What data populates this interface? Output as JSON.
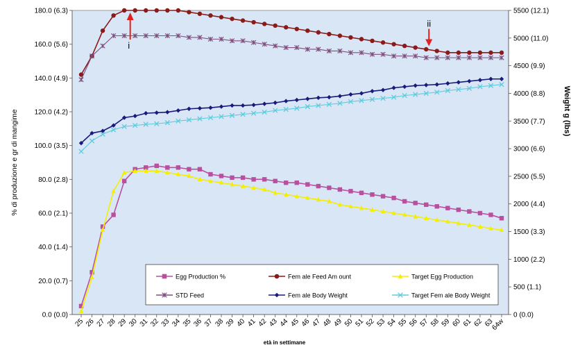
{
  "chart_data": {
    "type": "line",
    "title": "",
    "xlabel": "età in settimane",
    "ylabel_left": "% di produzione e gr di mangime",
    "ylabel_right": "Weight g (lbs)",
    "categories": [
      "25",
      "26",
      "27",
      "28",
      "29",
      "30",
      "31",
      "32",
      "33",
      "34",
      "35",
      "36",
      "37",
      "38",
      "39",
      "40",
      "41",
      "42",
      "43",
      "44",
      "45",
      "46",
      "47",
      "48",
      "49",
      "50",
      "51",
      "52",
      "53",
      "54",
      "55",
      "56",
      "57",
      "58",
      "59",
      "60",
      "61",
      "62",
      "63",
      "64w"
    ],
    "ylim_left": [
      0,
      180
    ],
    "ylim_right": [
      0,
      5500
    ],
    "yticks_left": [
      "0.0 (0.0)",
      "20.0 (0.7)",
      "40.0 (1.4)",
      "60.0 (2.1)",
      "80.0 (2.8)",
      "100.0 (3.5)",
      "120.0 (4.2)",
      "140.0 (4.9)",
      "160.0 (5.6)",
      "180.0 (6.3)"
    ],
    "yticks_right": [
      "0 (0.0)",
      "500 (1.1)",
      "1000 (2.2)",
      "1500 (3.3)",
      "2000 (4.4)",
      "2500 (5.5)",
      "3000 (6.6)",
      "3500 (7.7)",
      "4000 (8.8)",
      "4500 (9.9)",
      "5000 (11.0)",
      "5500 (12.1)"
    ],
    "grid": false,
    "background_color": "#d9e6f5",
    "legend_position": "bottom-center",
    "series": [
      {
        "name": "Egg Production %",
        "axis": "left",
        "color": "#b8509f",
        "marker": "square",
        "values": [
          5,
          25,
          52,
          59,
          79,
          86,
          87,
          88,
          87,
          87,
          86,
          86,
          83,
          82,
          81,
          81,
          80,
          80,
          79,
          78,
          78,
          77,
          76,
          75,
          74,
          73,
          72,
          71,
          70,
          69,
          67,
          66,
          65,
          64,
          63,
          62,
          61,
          60,
          59,
          57
        ]
      },
      {
        "name": "Female Feed Amount",
        "axis": "left",
        "color": "#8b1a1a",
        "marker": "circle",
        "values": [
          142,
          153,
          168,
          177,
          180,
          180,
          180,
          180,
          180,
          180,
          179,
          178,
          177,
          176,
          175,
          174,
          173,
          172,
          171,
          170,
          169,
          168,
          167,
          166,
          165,
          164,
          163,
          162,
          161,
          160,
          159,
          158,
          157,
          156,
          155,
          155,
          155,
          155,
          155,
          155
        ]
      },
      {
        "name": "Target Egg Production",
        "axis": "left",
        "color": "#f4ee00",
        "marker": "triangle",
        "values": [
          2,
          22,
          50,
          73,
          84,
          85,
          85,
          85,
          84,
          83,
          82,
          80,
          79,
          78,
          77,
          76,
          75,
          74,
          72,
          71,
          70,
          69,
          68,
          67,
          65,
          64,
          63,
          62,
          61,
          60,
          59,
          58,
          57,
          56,
          55,
          54,
          53,
          52,
          51,
          50
        ]
      },
      {
        "name": "STD Feed",
        "axis": "left",
        "color": "#7f4f7f",
        "marker": "star",
        "values": [
          139,
          153,
          159,
          165,
          165,
          165,
          165,
          165,
          165,
          165,
          164,
          164,
          163,
          163,
          162,
          162,
          161,
          160,
          159,
          158,
          158,
          157,
          157,
          156,
          156,
          155,
          155,
          154,
          154,
          153,
          153,
          153,
          152,
          152,
          152,
          152,
          152,
          152,
          152,
          152
        ]
      },
      {
        "name": "Female Body Weight",
        "axis": "right",
        "color": "#1a1a7a",
        "marker": "diamond",
        "values": [
          3100,
          3280,
          3320,
          3420,
          3560,
          3590,
          3640,
          3650,
          3660,
          3690,
          3720,
          3730,
          3740,
          3760,
          3780,
          3780,
          3790,
          3810,
          3830,
          3860,
          3880,
          3900,
          3920,
          3930,
          3950,
          3980,
          4000,
          4040,
          4060,
          4100,
          4120,
          4140,
          4150,
          4160,
          4180,
          4200,
          4220,
          4240,
          4260,
          4260
        ]
      },
      {
        "name": "Target Female Body Weight",
        "axis": "right",
        "color": "#5ecbdc",
        "marker": "x",
        "values": [
          2950,
          3140,
          3260,
          3340,
          3400,
          3420,
          3440,
          3450,
          3470,
          3500,
          3520,
          3540,
          3560,
          3580,
          3600,
          3620,
          3640,
          3660,
          3690,
          3710,
          3730,
          3760,
          3780,
          3800,
          3820,
          3850,
          3870,
          3890,
          3910,
          3930,
          3960,
          3980,
          4000,
          4020,
          4050,
          4070,
          4090,
          4120,
          4140,
          4160
        ]
      }
    ],
    "annotations": [
      {
        "label": "i",
        "category": "30",
        "value": 180
      },
      {
        "label": "ii",
        "category": "57",
        "value": 158
      }
    ],
    "legend": [
      "Egg Production %",
      "Fem ale Feed  Am ount",
      "Target  Egg  Production",
      "STD  Feed",
      "Fem ale Body  Weight",
      "Target  Fem ale Body  Weight"
    ]
  }
}
